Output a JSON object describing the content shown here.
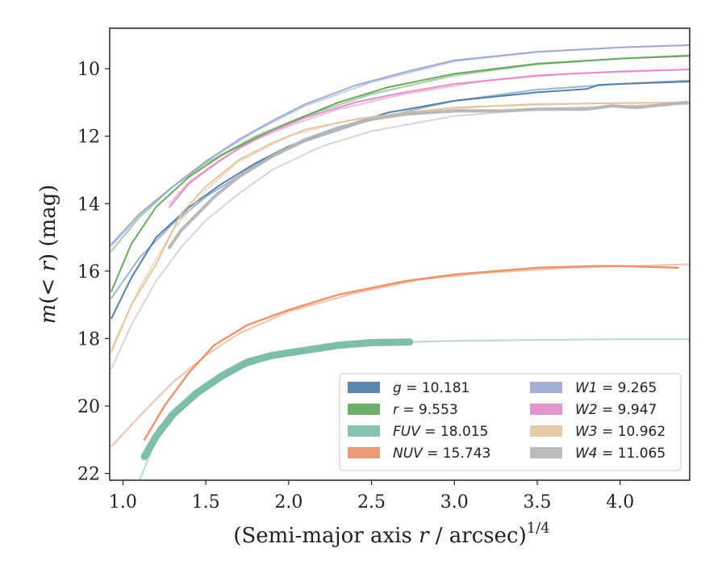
{
  "chart_data": {
    "type": "line",
    "title": "",
    "xlabel": "(Semi-major axis r / arcsec)",
    "xlabel_exponent": "1/4",
    "ylabel": "m(< r) (mag)",
    "xlim": [
      0.92,
      4.42
    ],
    "ylim": [
      22.2,
      8.8
    ],
    "y_inverted": true,
    "grid": false,
    "legend_position": "lower-right",
    "xticks": [
      "1.0",
      "1.5",
      "2.0",
      "2.5",
      "3.0",
      "3.5",
      "4.0"
    ],
    "yticks": [
      "10",
      "12",
      "14",
      "16",
      "18",
      "20",
      "22"
    ],
    "series": [
      {
        "name": "g",
        "legend": "g = 10.181",
        "color": "#4c79a8",
        "width": 2,
        "data": [
          [
            0.93,
            17.4
          ],
          [
            1.05,
            16.2
          ],
          [
            1.2,
            15.0
          ],
          [
            1.4,
            14.1
          ],
          [
            1.6,
            13.4
          ],
          [
            1.8,
            12.8
          ],
          [
            2.0,
            12.3
          ],
          [
            2.3,
            11.75
          ],
          [
            2.6,
            11.3
          ],
          [
            3.0,
            10.95
          ],
          [
            3.5,
            10.7
          ],
          [
            3.8,
            10.6
          ],
          [
            3.87,
            10.48
          ],
          [
            4.0,
            10.45
          ],
          [
            4.42,
            10.38
          ]
        ],
        "model": [
          [
            0.93,
            16.8
          ],
          [
            1.1,
            15.6
          ],
          [
            1.3,
            14.6
          ],
          [
            1.5,
            13.8
          ],
          [
            1.8,
            12.85
          ],
          [
            2.1,
            12.15
          ],
          [
            2.5,
            11.5
          ],
          [
            3.0,
            10.95
          ],
          [
            3.5,
            10.62
          ],
          [
            4.0,
            10.45
          ],
          [
            4.42,
            10.35
          ]
        ]
      },
      {
        "name": "r",
        "legend": "r = 9.553",
        "color": "#5fa55a",
        "width": 2,
        "data": [
          [
            0.93,
            16.6
          ],
          [
            1.05,
            15.2
          ],
          [
            1.2,
            14.1
          ],
          [
            1.4,
            13.2
          ],
          [
            1.6,
            12.55
          ],
          [
            1.8,
            12.05
          ],
          [
            2.0,
            11.6
          ],
          [
            2.3,
            11.0
          ],
          [
            2.6,
            10.55
          ],
          [
            3.0,
            10.15
          ],
          [
            3.5,
            9.85
          ],
          [
            4.0,
            9.7
          ],
          [
            4.42,
            9.62
          ]
        ],
        "model": [
          [
            0.93,
            15.4
          ],
          [
            1.1,
            14.4
          ],
          [
            1.3,
            13.5
          ],
          [
            1.5,
            12.8
          ],
          [
            1.8,
            12.0
          ],
          [
            2.1,
            11.4
          ],
          [
            2.5,
            10.75
          ],
          [
            3.0,
            10.2
          ],
          [
            3.5,
            9.87
          ],
          [
            4.0,
            9.7
          ],
          [
            4.42,
            9.6
          ]
        ]
      },
      {
        "name": "FUV",
        "legend": "FUV = 18.015",
        "color": "#79bba8",
        "width": 9,
        "data": [
          [
            1.13,
            21.5
          ],
          [
            1.2,
            20.9
          ],
          [
            1.3,
            20.25
          ],
          [
            1.45,
            19.6
          ],
          [
            1.6,
            19.1
          ],
          [
            1.75,
            18.7
          ],
          [
            1.9,
            18.5
          ],
          [
            2.1,
            18.35
          ],
          [
            2.3,
            18.2
          ],
          [
            2.5,
            18.12
          ],
          [
            2.73,
            18.1
          ]
        ],
        "model": [
          [
            1.1,
            22.2
          ],
          [
            1.2,
            21.0
          ],
          [
            1.35,
            20.1
          ],
          [
            1.5,
            19.5
          ],
          [
            1.7,
            18.9
          ],
          [
            1.9,
            18.55
          ],
          [
            2.2,
            18.3
          ],
          [
            2.6,
            18.12
          ],
          [
            3.0,
            18.07
          ],
          [
            3.5,
            18.04
          ],
          [
            4.0,
            18.02
          ],
          [
            4.42,
            18.02
          ]
        ]
      },
      {
        "name": "NUV",
        "legend": "NUV = 15.743",
        "color": "#e8906c",
        "width": 2.5,
        "data": [
          [
            1.13,
            21.0
          ],
          [
            1.25,
            20.0
          ],
          [
            1.4,
            19.0
          ],
          [
            1.55,
            18.2
          ],
          [
            1.75,
            17.6
          ],
          [
            2.0,
            17.15
          ],
          [
            2.3,
            16.7
          ],
          [
            2.7,
            16.3
          ],
          [
            3.0,
            16.1
          ],
          [
            3.5,
            15.9
          ],
          [
            3.85,
            15.85
          ],
          [
            4.0,
            15.85
          ],
          [
            4.35,
            15.9
          ]
        ],
        "model": [
          [
            0.93,
            21.2
          ],
          [
            1.1,
            20.3
          ],
          [
            1.3,
            19.3
          ],
          [
            1.5,
            18.5
          ],
          [
            1.7,
            17.85
          ],
          [
            2.0,
            17.2
          ],
          [
            2.4,
            16.65
          ],
          [
            2.8,
            16.25
          ],
          [
            3.2,
            16.05
          ],
          [
            3.7,
            15.9
          ],
          [
            4.42,
            15.8
          ]
        ]
      },
      {
        "name": "W1",
        "legend": "W1 = 9.265",
        "color": "#9ba8cf",
        "width": 2,
        "data": [
          [
            0.93,
            15.2
          ],
          [
            1.1,
            14.3
          ],
          [
            1.3,
            13.5
          ],
          [
            1.5,
            12.75
          ],
          [
            1.7,
            12.1
          ],
          [
            1.9,
            11.55
          ],
          [
            2.1,
            11.05
          ],
          [
            2.4,
            10.5
          ],
          [
            2.7,
            10.1
          ],
          [
            3.0,
            9.75
          ],
          [
            3.5,
            9.5
          ],
          [
            4.0,
            9.37
          ],
          [
            4.42,
            9.3
          ]
        ],
        "model": [
          [
            0.93,
            15.25
          ],
          [
            1.1,
            14.35
          ],
          [
            1.3,
            13.5
          ],
          [
            1.5,
            12.75
          ],
          [
            1.8,
            11.85
          ],
          [
            2.1,
            11.1
          ],
          [
            2.5,
            10.4
          ],
          [
            3.0,
            9.78
          ],
          [
            3.5,
            9.5
          ],
          [
            4.0,
            9.37
          ],
          [
            4.42,
            9.3
          ]
        ]
      },
      {
        "name": "W2",
        "legend": "W2 = 9.947",
        "color": "#df8cc4",
        "width": 2,
        "data": [
          [
            1.28,
            14.1
          ],
          [
            1.4,
            13.4
          ],
          [
            1.55,
            12.85
          ],
          [
            1.7,
            12.35
          ],
          [
            1.9,
            11.85
          ],
          [
            2.1,
            11.45
          ],
          [
            2.4,
            11.0
          ],
          [
            2.7,
            10.7
          ],
          [
            3.0,
            10.45
          ],
          [
            3.5,
            10.2
          ],
          [
            4.0,
            10.08
          ],
          [
            4.42,
            10.02
          ]
        ],
        "model": [
          [
            1.28,
            14.0
          ],
          [
            1.4,
            13.35
          ],
          [
            1.6,
            12.65
          ],
          [
            1.8,
            12.1
          ],
          [
            2.0,
            11.7
          ],
          [
            2.3,
            11.2
          ],
          [
            2.7,
            10.75
          ],
          [
            3.2,
            10.35
          ],
          [
            3.7,
            10.15
          ],
          [
            4.42,
            10.02
          ]
        ]
      },
      {
        "name": "W3",
        "legend": "W3 = 10.962",
        "color": "#e2c49d",
        "width": 2,
        "data": [
          [
            0.93,
            18.4
          ],
          [
            1.05,
            17.0
          ],
          [
            1.2,
            15.8
          ],
          [
            1.35,
            14.3
          ],
          [
            1.5,
            13.5
          ],
          [
            1.7,
            12.7
          ],
          [
            1.9,
            12.2
          ],
          [
            2.1,
            11.8
          ],
          [
            2.4,
            11.5
          ],
          [
            2.7,
            11.3
          ],
          [
            3.0,
            11.15
          ],
          [
            3.5,
            11.05
          ],
          [
            4.0,
            11.02
          ],
          [
            4.42,
            11.0
          ]
        ],
        "model": [
          [
            0.93,
            18.3
          ],
          [
            1.1,
            16.5
          ],
          [
            1.3,
            14.8
          ],
          [
            1.5,
            13.6
          ],
          [
            1.7,
            12.75
          ],
          [
            2.0,
            12.0
          ],
          [
            2.3,
            11.6
          ],
          [
            2.7,
            11.3
          ],
          [
            3.2,
            11.12
          ],
          [
            3.8,
            11.03
          ],
          [
            4.42,
            11.0
          ]
        ]
      },
      {
        "name": "W4",
        "legend": "W4 = 11.065",
        "color": "#b5b5b5",
        "width": 4,
        "data": [
          [
            1.28,
            15.3
          ],
          [
            1.35,
            14.8
          ],
          [
            1.45,
            14.3
          ],
          [
            1.55,
            13.8
          ],
          [
            1.7,
            13.2
          ],
          [
            1.9,
            12.6
          ],
          [
            2.1,
            12.1
          ],
          [
            2.3,
            11.75
          ],
          [
            2.5,
            11.5
          ],
          [
            2.7,
            11.35
          ],
          [
            3.0,
            11.25
          ],
          [
            3.3,
            11.25
          ],
          [
            3.5,
            11.2
          ],
          [
            3.8,
            11.2
          ],
          [
            3.95,
            11.1
          ],
          [
            4.1,
            11.15
          ],
          [
            4.3,
            11.05
          ],
          [
            4.4,
            11.0
          ]
        ],
        "model": [
          [
            0.93,
            18.9
          ],
          [
            1.05,
            17.6
          ],
          [
            1.2,
            16.3
          ],
          [
            1.35,
            15.3
          ],
          [
            1.5,
            14.5
          ],
          [
            1.7,
            13.7
          ],
          [
            1.9,
            13.0
          ],
          [
            2.2,
            12.3
          ],
          [
            2.5,
            11.85
          ],
          [
            3.0,
            11.4
          ],
          [
            3.5,
            11.2
          ],
          [
            4.0,
            11.1
          ],
          [
            4.42,
            11.05
          ]
        ]
      }
    ]
  }
}
